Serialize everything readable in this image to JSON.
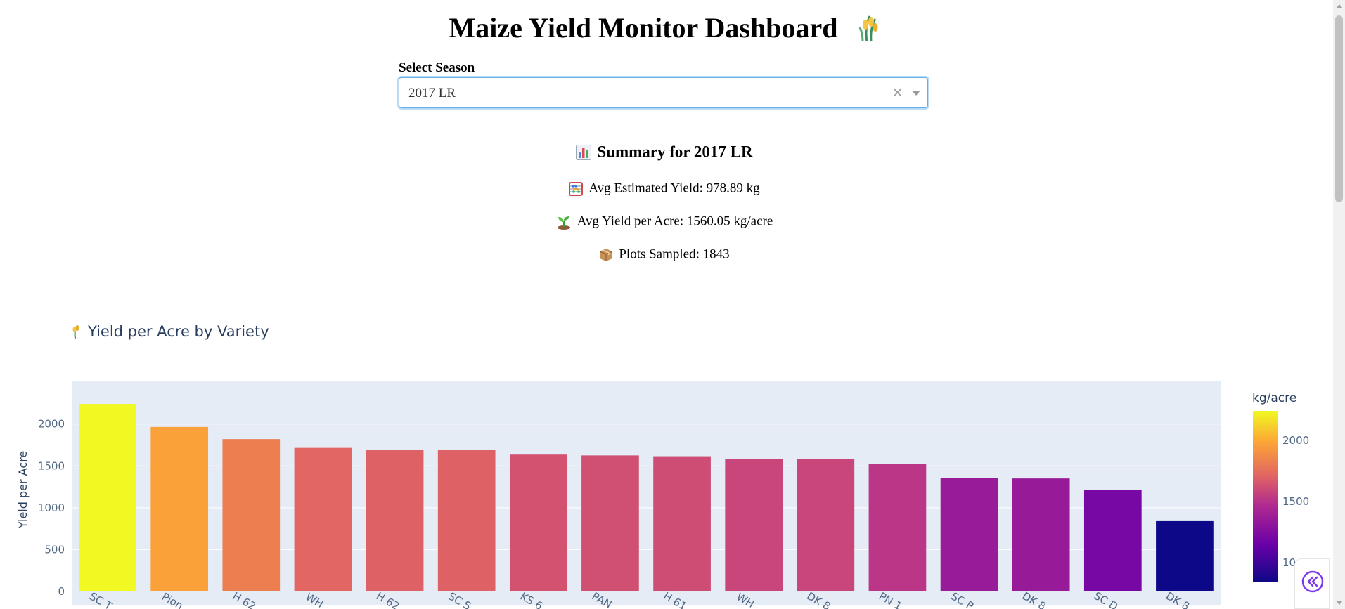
{
  "header": {
    "title": "Maize Yield Monitor Dashboard",
    "title_icon": "maize-icon"
  },
  "season_selector": {
    "label": "Select Season",
    "value": "2017 LR",
    "clear_glyph": "×"
  },
  "summary": {
    "heading": "Summary for 2017 LR",
    "avg_estimated_yield": "Avg Estimated Yield: 978.89 kg",
    "avg_yield_per_acre": "Avg Yield per Acre: 1560.05 kg/acre",
    "plots_sampled": "Plots Sampled: 1843",
    "icons": [
      "bar-chart-icon",
      "abacus-icon",
      "seedling-icon",
      "package-icon"
    ]
  },
  "chart_data": {
    "type": "bar",
    "title": "Yield per Acre by Variety",
    "ylabel": "Yield per Acre",
    "categories": [
      "SC T…",
      "Pion…",
      "H 62…",
      "WH …",
      "H 62…",
      "SC S…",
      "KS 6…",
      "PAN …",
      "H 61…",
      "WH …",
      "DK 8…",
      "PN 1…",
      "SC P…",
      "DK 8…",
      "SC D…",
      "DK 8…"
    ],
    "values": [
      2240,
      1965,
      1820,
      1715,
      1695,
      1695,
      1635,
      1625,
      1615,
      1585,
      1585,
      1520,
      1355,
      1350,
      1210,
      840
    ],
    "ylim": [
      0,
      2350
    ],
    "yticks": [
      0,
      500,
      1000,
      1500,
      2000
    ],
    "grid": true,
    "colorbar": {
      "title": "kg/acre",
      "min": 840,
      "max": 2240,
      "ticks": [
        "2000",
        "1500",
        "10"
      ]
    },
    "colors": {
      "plot_bg": "#e5ecf6",
      "text": "#2a3f5f",
      "tick_text": "#506784"
    }
  }
}
